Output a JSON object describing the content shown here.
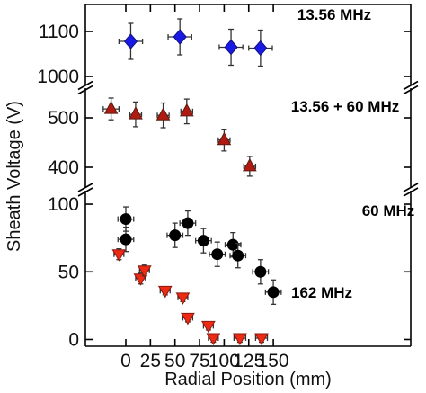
{
  "chart_data": {
    "type": "scatter",
    "title": "",
    "xlabel": "Radial Position (mm)",
    "ylabel": "Sheath Voltage (V)",
    "xlim": [
      -25,
      160
    ],
    "x_ticks": [
      0,
      25,
      50,
      75,
      100,
      125,
      150
    ],
    "y_axis": "broken",
    "panels": [
      {
        "name": "top",
        "ylim": [
          980,
          1160
        ],
        "ticks": [
          1000,
          1100
        ]
      },
      {
        "name": "middle",
        "ylim": [
          360,
          560
        ],
        "ticks": [
          400,
          500
        ]
      },
      {
        "name": "bottom",
        "ylim": [
          -5,
          110
        ],
        "ticks": [
          0,
          50,
          100
        ]
      }
    ],
    "series": [
      {
        "name": "13.56 MHz",
        "panel": "top",
        "marker": "diamond",
        "color": "#1a1ae6",
        "points": [
          {
            "x": 5,
            "y": 1078,
            "xerr": 12,
            "yerr": 40
          },
          {
            "x": 55,
            "y": 1088,
            "xerr": 12,
            "yerr": 40
          },
          {
            "x": 107,
            "y": 1065,
            "xerr": 12,
            "yerr": 40
          },
          {
            "x": 137,
            "y": 1063,
            "xerr": 12,
            "yerr": 40
          }
        ]
      },
      {
        "name": "13.56 + 60 MHz",
        "panel": "middle",
        "marker": "triangle-up",
        "color": "#b01a10",
        "points": [
          {
            "x": -15,
            "y": 518,
            "xerr": 8,
            "yerr": 22
          },
          {
            "x": 10,
            "y": 507,
            "xerr": 6,
            "yerr": 25
          },
          {
            "x": 38,
            "y": 505,
            "xerr": 6,
            "yerr": 25
          },
          {
            "x": 62,
            "y": 513,
            "xerr": 6,
            "yerr": 25
          },
          {
            "x": 100,
            "y": 455,
            "xerr": 6,
            "yerr": 22
          },
          {
            "x": 126,
            "y": 402,
            "xerr": 6,
            "yerr": 20
          }
        ]
      },
      {
        "name": "60 MHz",
        "panel": "bottom",
        "marker": "circle",
        "color": "#000000",
        "points": [
          {
            "x": 0,
            "y": 89,
            "xerr": 8,
            "yerr": 9
          },
          {
            "x": 0,
            "y": 74,
            "xerr": 8,
            "yerr": 9
          },
          {
            "x": 50,
            "y": 77,
            "xerr": 8,
            "yerr": 9
          },
          {
            "x": 63,
            "y": 86,
            "xerr": 8,
            "yerr": 9
          },
          {
            "x": 79,
            "y": 73,
            "xerr": 8,
            "yerr": 9
          },
          {
            "x": 93,
            "y": 63,
            "xerr": 8,
            "yerr": 9
          },
          {
            "x": 109,
            "y": 70,
            "xerr": 8,
            "yerr": 9
          },
          {
            "x": 114,
            "y": 62,
            "xerr": 8,
            "yerr": 9
          },
          {
            "x": 137,
            "y": 50,
            "xerr": 8,
            "yerr": 9
          },
          {
            "x": 150,
            "y": 35,
            "xerr": 8,
            "yerr": 9
          }
        ]
      },
      {
        "name": "162 MHz",
        "panel": "bottom",
        "marker": "triangle-down",
        "color": "#ee2a14",
        "points": [
          {
            "x": -7,
            "y": 63,
            "xerr": 5,
            "yerr": 4
          },
          {
            "x": 15,
            "y": 45,
            "xerr": 5,
            "yerr": 4
          },
          {
            "x": 19,
            "y": 51,
            "xerr": 5,
            "yerr": 4
          },
          {
            "x": 40,
            "y": 36,
            "xerr": 5,
            "yerr": 3
          },
          {
            "x": 58,
            "y": 31,
            "xerr": 5,
            "yerr": 3
          },
          {
            "x": 63,
            "y": 16,
            "xerr": 5,
            "yerr": 3
          },
          {
            "x": 84,
            "y": 10,
            "xerr": 5,
            "yerr": 3
          },
          {
            "x": 89,
            "y": 1,
            "xerr": 5,
            "yerr": 3
          },
          {
            "x": 116,
            "y": 1,
            "xerr": 6,
            "yerr": 3
          },
          {
            "x": 138,
            "y": 1,
            "xerr": 6,
            "yerr": 3
          }
        ]
      }
    ]
  }
}
